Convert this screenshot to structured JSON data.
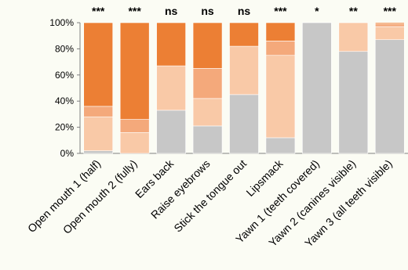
{
  "chart_data": {
    "type": "bar",
    "stacked": true,
    "percent": true,
    "categories": [
      "Open mouth 1 (half)",
      "Open mouth 2 (fully)",
      "Ears back",
      "Raise eyebrows",
      "Stick the tongue out",
      "Lipsmack",
      "Yawn 1 (teeth covered)",
      "Yawn 2 (canines visible)",
      "Yawn 3 (all teeth visible)"
    ],
    "significance": [
      "***",
      "***",
      "ns",
      "ns",
      "ns",
      "***",
      "*",
      "**",
      "***"
    ],
    "series": [
      {
        "color": "#c7c7c7",
        "values": [
          2,
          0,
          33,
          21,
          45,
          12,
          100,
          78,
          87
        ]
      },
      {
        "color": "#f9c9a7",
        "values": [
          26,
          16,
          34,
          21,
          37,
          63,
          0,
          22,
          10
        ]
      },
      {
        "color": "#f4a97b",
        "values": [
          8,
          10,
          0,
          23,
          0,
          11,
          0,
          0,
          2
        ]
      },
      {
        "color": "#ec7f34",
        "values": [
          64,
          74,
          33,
          35,
          18,
          14,
          0,
          0,
          1
        ]
      }
    ],
    "y_ticks": [
      "0%",
      "20%",
      "40%",
      "60%",
      "80%",
      "100%"
    ],
    "ylim": [
      0,
      100
    ],
    "grid": false,
    "xlabel": "",
    "ylabel": "",
    "title": ""
  }
}
